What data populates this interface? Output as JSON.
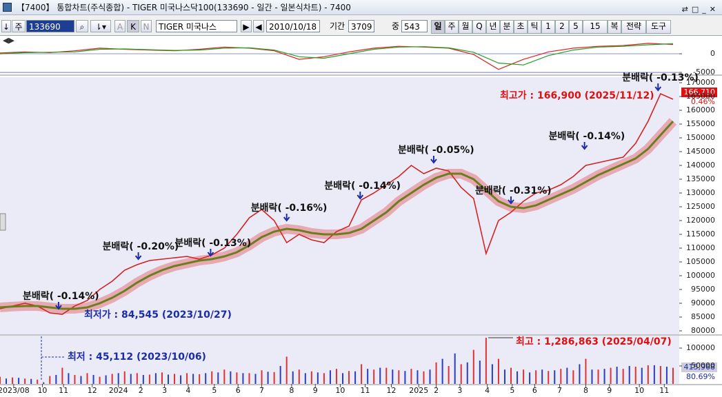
{
  "window": {
    "title": "【7400】 통합차트(주식종합) - TIGER 미국나스닥100(133690 - 일간 - 일본식차트) - 7400"
  },
  "toolbar": {
    "period_unit": "주",
    "code": "133690",
    "mode_a": "A",
    "mode_k": "K",
    "mode_n": "N",
    "name": "TIGER 미국나스",
    "date": "2010/10/18",
    "period_label": "기간",
    "period": "3709",
    "count_label": "중",
    "count": "543",
    "buttons": [
      "일",
      "주",
      "월",
      "Q",
      "년",
      "분",
      "초",
      "틱",
      "1",
      "2",
      "5",
      "15",
      "복",
      "전략",
      "도구"
    ]
  },
  "chart_data": [
    {
      "type": "line",
      "xlim": [
        0,
        545
      ],
      "ylim": [
        -5550,
        4070
      ],
      "yticks": [
        -5000,
        0
      ],
      "x": [
        0,
        20,
        40,
        60,
        80,
        100,
        120,
        140,
        160,
        180,
        200,
        220,
        240,
        260,
        280,
        300,
        320,
        340,
        360,
        380,
        400,
        420,
        440,
        460,
        480,
        500,
        520,
        540
      ],
      "series": [
        {
          "color": "#e02020",
          "values": [
            200,
            500,
            300,
            800,
            1500,
            1200,
            1000,
            800,
            1200,
            1800,
            1500,
            800,
            -1500,
            -800,
            500,
            1500,
            2000,
            1800,
            1500,
            -200,
            -4200,
            -1500,
            500,
            1500,
            2000,
            2200,
            2800,
            2500
          ]
        },
        {
          "color": "#20a020",
          "values": [
            0,
            300,
            400,
            500,
            1200,
            1300,
            1100,
            900,
            1000,
            1500,
            1600,
            1000,
            -800,
            -1200,
            0,
            1200,
            1800,
            1900,
            1600,
            400,
            -2500,
            -3000,
            -500,
            1000,
            1800,
            2000,
            2400,
            2700
          ]
        }
      ]
    },
    {
      "type": "line",
      "xlim": [
        0,
        545
      ],
      "ylim": [
        78750,
        172000
      ],
      "yticks": [
        80000,
        85000,
        90000,
        95000,
        100000,
        105000,
        110000,
        115000,
        120000,
        125000,
        130000,
        135000,
        140000,
        145000,
        150000,
        155000,
        160000,
        165000,
        170000
      ],
      "x": [
        0,
        10,
        20,
        30,
        40,
        50,
        60,
        70,
        80,
        90,
        100,
        110,
        120,
        130,
        140,
        150,
        160,
        170,
        180,
        190,
        200,
        210,
        220,
        230,
        240,
        250,
        260,
        270,
        280,
        290,
        300,
        310,
        320,
        330,
        340,
        350,
        360,
        370,
        380,
        390,
        400,
        410,
        420,
        430,
        440,
        450,
        460,
        470,
        480,
        490,
        500,
        510,
        520,
        530,
        540
      ],
      "series": [
        {
          "color": "#d42020",
          "values": [
            88000,
            89000,
            90000,
            89000,
            86500,
            86000,
            89000,
            91000,
            95000,
            98000,
            102000,
            104000,
            105500,
            106000,
            106500,
            107000,
            106000,
            107500,
            110000,
            115000,
            121000,
            124000,
            120000,
            112000,
            115000,
            113000,
            112000,
            116000,
            118000,
            127500,
            130000,
            133000,
            136000,
            140000,
            137000,
            139000,
            138000,
            132000,
            128000,
            108000,
            120000,
            123000,
            127000,
            130000,
            131000,
            133000,
            136000,
            140000,
            141000,
            142000,
            143000,
            148000,
            156000,
            166000,
            164000
          ]
        },
        {
          "color": "#6b7d1e",
          "values": [
            88500,
            88800,
            89000,
            89000,
            88500,
            88000,
            88000,
            88500,
            90000,
            92000,
            94500,
            97500,
            100000,
            102000,
            103500,
            104500,
            105500,
            106000,
            107000,
            108500,
            111000,
            114000,
            116000,
            117000,
            116500,
            115500,
            115000,
            115000,
            115500,
            117000,
            120000,
            123000,
            127000,
            130000,
            133000,
            135500,
            137000,
            137000,
            135000,
            131000,
            127000,
            125000,
            124500,
            125500,
            127500,
            129500,
            131500,
            134000,
            136500,
            138500,
            140500,
            142500,
            146000,
            151000,
            156000
          ]
        }
      ],
      "annotations": [
        {
          "text": "분배락( -0.14%)",
          "x": 47,
          "y": 87500
        },
        {
          "text": "분배락( -0.20%)",
          "x": 111,
          "y": 105500
        },
        {
          "text": "분배락( -0.13%)",
          "x": 169,
          "y": 106750
        },
        {
          "text": "분배락( -0.16%)",
          "x": 230,
          "y": 119500
        },
        {
          "text": "분배락( -0.14%)",
          "x": 289,
          "y": 127500
        },
        {
          "text": "분배락( -0.05%)",
          "x": 348,
          "y": 140500
        },
        {
          "text": "분배락( -0.31%)",
          "x": 410,
          "y": 125750
        },
        {
          "text": "분배락( -0.14%)",
          "x": 469,
          "y": 145500
        },
        {
          "text": "분배락( -0.13%)",
          "x": 528,
          "y": 166750
        }
      ],
      "high_label": "최고가 : 166,900 (2025/11/12)",
      "low_label": "최저가 : 84,545 (2023/10/27)",
      "last_price": "166,710",
      "change": "0.46%"
    },
    {
      "type": "bar",
      "xlim": [
        0,
        545
      ],
      "ylim": [
        0,
        134600
      ],
      "yticks": [
        50000,
        100000
      ],
      "xticks": [
        {
          "value": 11,
          "label": "2023/08"
        },
        {
          "value": 34,
          "label": "10"
        },
        {
          "value": 51,
          "label": "11"
        },
        {
          "value": 74,
          "label": "12"
        },
        {
          "value": 95,
          "label": "2024"
        },
        {
          "value": 113,
          "label": "2"
        },
        {
          "value": 132,
          "label": "3"
        },
        {
          "value": 151,
          "label": "4"
        },
        {
          "value": 172,
          "label": "5"
        },
        {
          "value": 191,
          "label": "6"
        },
        {
          "value": 210,
          "label": "7"
        },
        {
          "value": 234,
          "label": "8"
        },
        {
          "value": 253,
          "label": "9"
        },
        {
          "value": 273,
          "label": "10"
        },
        {
          "value": 293,
          "label": "11"
        },
        {
          "value": 314,
          "label": "12"
        },
        {
          "value": 336,
          "label": "2025"
        },
        {
          "value": 350,
          "label": "2"
        },
        {
          "value": 369,
          "label": "3"
        },
        {
          "value": 391,
          "label": "4"
        },
        {
          "value": 411,
          "label": "5"
        },
        {
          "value": 429,
          "label": "6"
        },
        {
          "value": 449,
          "label": "7"
        },
        {
          "value": 470,
          "label": "8"
        },
        {
          "value": 489,
          "label": "9"
        },
        {
          "value": 513,
          "label": "10"
        },
        {
          "value": 533,
          "label": "11"
        }
      ],
      "series": [
        {
          "color": "#e03030",
          "x": [
            0,
            10,
            20,
            30,
            40,
            50,
            60,
            70,
            80,
            90,
            100,
            110,
            120,
            130,
            140,
            150,
            160,
            170,
            180,
            190,
            200,
            210,
            220,
            230,
            240,
            250,
            260,
            270,
            280,
            290,
            300,
            310,
            320,
            330,
            340,
            350,
            360,
            370,
            380,
            390,
            400,
            410,
            420,
            430,
            440,
            450,
            460,
            470,
            480,
            490,
            500,
            510,
            520,
            530,
            540
          ],
          "values": [
            20000,
            18000,
            15000,
            12000,
            22000,
            45000,
            25000,
            30000,
            20000,
            28000,
            35000,
            30000,
            26000,
            32000,
            28000,
            30000,
            27000,
            35000,
            40000,
            32000,
            30000,
            38000,
            33000,
            76000,
            40000,
            35000,
            30000,
            42000,
            36000,
            55000,
            40000,
            45000,
            38000,
            42000,
            35000,
            60000,
            50000,
            55000,
            95000,
            128686,
            70000,
            45000,
            40000,
            38000,
            36000,
            42000,
            38000,
            70000,
            40000,
            45000,
            42000,
            48000,
            52000,
            50000,
            45000
          ]
        },
        {
          "color": "#2a3cc0",
          "x": [
            5,
            15,
            25,
            35,
            45,
            55,
            65,
            75,
            85,
            95,
            105,
            115,
            125,
            135,
            145,
            155,
            165,
            175,
            185,
            195,
            205,
            215,
            225,
            235,
            245,
            255,
            265,
            275,
            285,
            295,
            305,
            315,
            325,
            335,
            345,
            355,
            365,
            375,
            385,
            395,
            405,
            415,
            425,
            435,
            445,
            455,
            465,
            475,
            485,
            495,
            505,
            515,
            525,
            535
          ],
          "values": [
            15000,
            17000,
            14000,
            4511,
            25000,
            30000,
            22000,
            25000,
            24000,
            30000,
            28000,
            25000,
            30000,
            26000,
            24000,
            28000,
            30000,
            32000,
            35000,
            30000,
            28000,
            34000,
            50000,
            35000,
            30000,
            32000,
            38000,
            30000,
            35000,
            42000,
            45000,
            40000,
            36000,
            38000,
            40000,
            70000,
            85000,
            60000,
            65000,
            55000,
            40000,
            35000,
            32000,
            40000,
            38000,
            45000,
            55000,
            40000,
            42000,
            48000,
            50000,
            45000,
            52000,
            48000
          ]
        }
      ],
      "low_label": "최저 : 45,112 (2023/10/06)",
      "high_label": "최고 : 1,286,863 (2025/04/07)",
      "last_volume": "415,968",
      "ratio": "80.69%"
    }
  ]
}
